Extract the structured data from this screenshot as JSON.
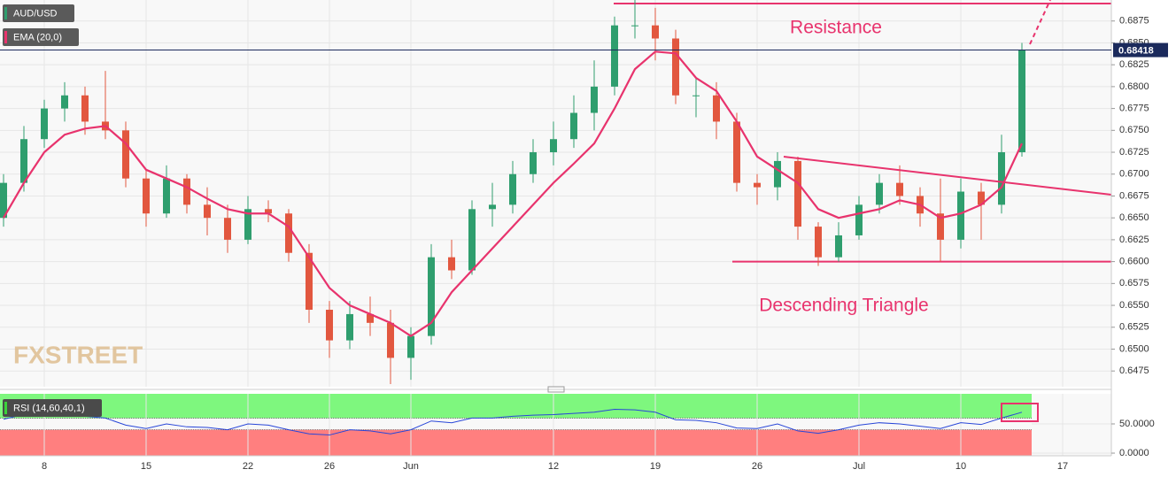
{
  "chart_data": [
    {
      "type": "candlestick",
      "title": "AUD/USD",
      "open": [
        0.665,
        0.669,
        0.674,
        0.6775,
        0.679,
        0.676,
        0.675,
        0.6695,
        0.6655,
        0.6695,
        0.6665,
        0.665,
        0.6625,
        0.666,
        0.6655,
        0.661,
        0.6545,
        0.651,
        0.654,
        0.653,
        0.649,
        0.6515,
        0.6605,
        0.659,
        0.666,
        0.6665,
        0.67,
        0.6725,
        0.674,
        0.677,
        0.68,
        0.687,
        0.687,
        0.6855,
        0.679,
        0.679,
        0.676,
        0.669,
        0.6685,
        0.6715,
        0.664,
        0.6605,
        0.663,
        0.6665,
        0.669,
        0.6675,
        0.6655,
        0.6625,
        0.668,
        0.6665,
        0.6725,
        null,
        null
      ],
      "high": [
        0.67,
        0.6755,
        0.6785,
        0.6805,
        0.68,
        0.6818,
        0.676,
        0.6705,
        0.671,
        0.67,
        0.6685,
        0.6665,
        0.6675,
        0.667,
        0.666,
        0.662,
        0.6555,
        0.6555,
        0.656,
        0.6545,
        0.6525,
        0.662,
        0.6625,
        0.667,
        0.669,
        0.6715,
        0.674,
        0.676,
        0.679,
        0.683,
        0.688,
        0.69,
        0.689,
        0.6865,
        0.681,
        0.6805,
        0.677,
        0.67,
        0.6725,
        0.672,
        0.6645,
        0.6645,
        0.6675,
        0.67,
        0.671,
        0.6685,
        0.6695,
        0.6695,
        0.669,
        0.6745,
        0.685,
        null,
        null
      ],
      "low": [
        0.664,
        0.668,
        0.673,
        0.676,
        0.6745,
        0.674,
        0.6685,
        0.664,
        0.665,
        0.6655,
        0.663,
        0.661,
        0.662,
        0.6645,
        0.66,
        0.653,
        0.649,
        0.65,
        0.6515,
        0.646,
        0.6465,
        0.6505,
        0.658,
        0.6585,
        0.664,
        0.6655,
        0.669,
        0.671,
        0.673,
        0.675,
        0.679,
        0.6855,
        0.683,
        0.678,
        0.6765,
        0.674,
        0.668,
        0.6665,
        0.667,
        0.6625,
        0.6595,
        0.66,
        0.6625,
        0.6655,
        0.6665,
        0.664,
        0.66,
        0.6615,
        0.6625,
        0.6655,
        0.672,
        null,
        null
      ],
      "close": [
        0.669,
        0.674,
        0.6775,
        0.679,
        0.676,
        0.675,
        0.6695,
        0.6655,
        0.6695,
        0.6665,
        0.665,
        0.6625,
        0.666,
        0.6655,
        0.661,
        0.6545,
        0.651,
        0.654,
        0.653,
        0.649,
        0.6515,
        0.6605,
        0.659,
        0.666,
        0.6665,
        0.67,
        0.6725,
        0.674,
        0.677,
        0.68,
        0.687,
        0.687,
        0.6855,
        0.679,
        0.679,
        0.676,
        0.669,
        0.6685,
        0.6715,
        0.664,
        0.6605,
        0.663,
        0.6665,
        0.669,
        0.6675,
        0.6655,
        0.6625,
        0.668,
        0.6665,
        0.6725,
        0.6842,
        null,
        null
      ],
      "up_color": "#2f9e6e",
      "down_color": "#e2573f",
      "series": [
        {
          "name": "EMA (20,0)",
          "color": "#e8336d",
          "values": [
            0.665,
            0.669,
            0.6725,
            0.6745,
            0.6752,
            0.6755,
            0.6735,
            0.6705,
            0.6695,
            0.6685,
            0.6672,
            0.666,
            0.6655,
            0.6655,
            0.664,
            0.6605,
            0.657,
            0.655,
            0.654,
            0.653,
            0.6515,
            0.653,
            0.6565,
            0.659,
            0.6615,
            0.664,
            0.6665,
            0.669,
            0.6712,
            0.6735,
            0.6775,
            0.682,
            0.684,
            0.6838,
            0.681,
            0.6795,
            0.676,
            0.672,
            0.6705,
            0.669,
            0.666,
            0.665,
            0.6655,
            0.666,
            0.667,
            0.6665,
            0.665,
            0.6655,
            0.6665,
            0.6685,
            0.6735,
            null,
            null
          ]
        }
      ],
      "last_price": 0.68418,
      "levels": [
        0.6895,
        0.66
      ],
      "annotations": [
        "Resistance",
        "Descending Triangle"
      ],
      "watermark": "FXSTREET",
      "ylim": [
        0.6457,
        0.6899
      ],
      "yticks": [
        0.6475,
        {
          "value": 0.65,
          "label": "0.6500"
        },
        0.6525,
        {
          "value": 0.655,
          "label": "0.6550"
        },
        0.6575,
        {
          "value": 0.66,
          "label": "0.6600"
        },
        0.6625,
        {
          "value": 0.665,
          "label": "0.6650"
        },
        0.6675,
        {
          "value": 0.67,
          "label": "0.6700"
        },
        0.6725,
        {
          "value": 0.675,
          "label": "0.6750"
        },
        0.6775,
        {
          "value": 0.68,
          "label": "0.6800"
        },
        0.6825,
        {
          "value": 0.685,
          "label": "0.6850"
        },
        0.6875
      ],
      "grid": true
    },
    {
      "type": "line",
      "title": "RSI (14,60,40,1)",
      "categories": [
        null,
        null,
        "8",
        null,
        null,
        null,
        null,
        "15",
        null,
        null,
        null,
        null,
        "22",
        null,
        null,
        null,
        "26",
        null,
        null,
        null,
        "Jun",
        null,
        null,
        null,
        null,
        null,
        null,
        "12",
        null,
        null,
        null,
        null,
        "19",
        null,
        null,
        null,
        null,
        "26",
        null,
        null,
        null,
        null,
        "Jul",
        null,
        null,
        null,
        null,
        "10",
        null,
        null,
        null,
        null,
        "17"
      ],
      "series": [
        {
          "name": "RSI",
          "color": "#2846d8",
          "values": [
            58,
            66,
            70,
            72,
            63,
            60,
            48,
            42,
            50,
            45,
            44,
            40,
            50,
            48,
            40,
            33,
            31,
            40,
            38,
            33,
            40,
            55,
            52,
            60,
            60,
            63,
            65,
            66,
            68,
            70,
            75,
            74,
            70,
            57,
            56,
            52,
            43,
            42,
            50,
            38,
            34,
            40,
            48,
            52,
            50,
            46,
            42,
            52,
            49,
            60,
            70,
            null,
            null
          ]
        }
      ],
      "bands": [
        60,
        40
      ],
      "band_colors": [
        "#7ef77e",
        "#ff7f7f"
      ],
      "ylim": [
        -4.5,
        101.5
      ],
      "yticks": [
        {
          "value": 0,
          "label": "0.0000"
        },
        {
          "value": 50,
          "label": "50.0000"
        }
      ],
      "grid": true
    }
  ]
}
